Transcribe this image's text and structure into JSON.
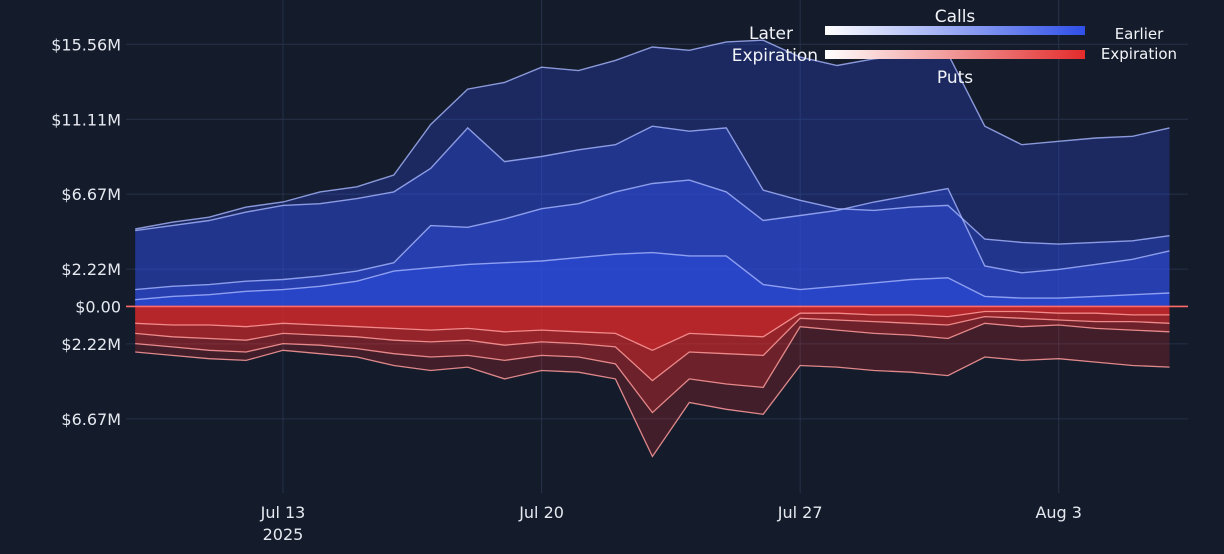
{
  "colors": {
    "background": "#141b2b",
    "grid": "#26324a",
    "calls_dark": "#2f4fe8",
    "calls_light": "#ffffff",
    "puts_dark": "#e32b2b",
    "puts_light": "#ffffff",
    "zero_line": "#ff6a6a"
  },
  "legend": {
    "calls_title": "Calls",
    "puts_title": "Puts",
    "later_line1": "Later",
    "later_line2": "Expiration",
    "earlier_line1": "Earlier",
    "earlier_line2": "Expiration",
    "placement": "top-right"
  },
  "chart_data": {
    "type": "area",
    "title": "",
    "xlabel": "",
    "ylabel": "",
    "x_tick_labels": [
      {
        "date": "2025-07-13",
        "label": "Jul 13",
        "sublabel": "2025"
      },
      {
        "date": "2025-07-20",
        "label": "Jul 20",
        "sublabel": ""
      },
      {
        "date": "2025-07-27",
        "label": "Jul 27",
        "sublabel": ""
      },
      {
        "date": "2025-08-03",
        "label": "Aug 3",
        "sublabel": ""
      }
    ],
    "y_tick_labels": [
      {
        "value": 15.56,
        "label": "$15.56M"
      },
      {
        "value": 11.11,
        "label": "$11.11M"
      },
      {
        "value": 6.67,
        "label": "$6.67M"
      },
      {
        "value": 2.22,
        "label": "$2.22M"
      },
      {
        "value": 0,
        "label": "$0.00"
      },
      {
        "value": -2.22,
        "label": "$2.22M"
      },
      {
        "value": -6.67,
        "label": "$6.67M"
      }
    ],
    "xlim": [
      "2025-07-08T18:00",
      "2025-08-06T12:00"
    ],
    "ylim": [
      -10.0,
      17.0
    ],
    "grid": true,
    "x": [
      "2025-07-09",
      "2025-07-10",
      "2025-07-11",
      "2025-07-12",
      "2025-07-13",
      "2025-07-14",
      "2025-07-15",
      "2025-07-16",
      "2025-07-17",
      "2025-07-18",
      "2025-07-19",
      "2025-07-20",
      "2025-07-21",
      "2025-07-22",
      "2025-07-23",
      "2025-07-24",
      "2025-07-25",
      "2025-07-26",
      "2025-07-27",
      "2025-07-28",
      "2025-07-29",
      "2025-07-30",
      "2025-07-31",
      "2025-08-01",
      "2025-08-02",
      "2025-08-03",
      "2025-08-04",
      "2025-08-05",
      "2025-08-06"
    ],
    "calls_series": [
      {
        "values": [
          4.6,
          5.0,
          5.3,
          5.9,
          6.2,
          6.8,
          7.1,
          7.8,
          10.8,
          12.9,
          13.3,
          14.2,
          14.0,
          14.6,
          15.4,
          15.2,
          15.7,
          15.8,
          14.8,
          14.3,
          14.7,
          14.9,
          15.0,
          10.7,
          9.6,
          9.8,
          10.0,
          10.1,
          10.6
        ]
      },
      {
        "values": [
          4.5,
          4.8,
          5.1,
          5.6,
          6.0,
          6.1,
          6.4,
          6.8,
          8.2,
          10.6,
          8.6,
          8.9,
          9.3,
          9.6,
          10.7,
          10.4,
          10.6,
          6.9,
          6.3,
          5.8,
          5.7,
          5.9,
          6.0,
          4.0,
          3.8,
          3.7,
          3.8,
          3.9,
          4.2
        ]
      },
      {
        "values": [
          1.0,
          1.2,
          1.3,
          1.5,
          1.6,
          1.8,
          2.1,
          2.6,
          4.8,
          4.7,
          5.2,
          5.8,
          6.1,
          6.8,
          7.3,
          7.5,
          6.8,
          5.1,
          5.4,
          5.7,
          6.2,
          6.6,
          7.0,
          2.4,
          2.0,
          2.2,
          2.5,
          2.8,
          3.3
        ]
      },
      {
        "values": [
          0.4,
          0.6,
          0.7,
          0.9,
          1.0,
          1.2,
          1.5,
          2.1,
          2.3,
          2.5,
          2.6,
          2.7,
          2.9,
          3.1,
          3.2,
          3.0,
          3.0,
          1.3,
          1.0,
          1.2,
          1.4,
          1.6,
          1.7,
          0.6,
          0.5,
          0.5,
          0.6,
          0.7,
          0.8
        ]
      }
    ],
    "puts_series": [
      {
        "values": [
          -2.7,
          -2.9,
          -3.1,
          -3.2,
          -2.6,
          -2.8,
          -3.0,
          -3.5,
          -3.8,
          -3.6,
          -4.3,
          -3.8,
          -3.9,
          -4.3,
          -8.9,
          -5.7,
          -6.1,
          -6.4,
          -3.5,
          -3.6,
          -3.8,
          -3.9,
          -4.1,
          -3.0,
          -3.2,
          -3.1,
          -3.3,
          -3.5,
          -3.6
        ]
      },
      {
        "values": [
          -2.2,
          -2.4,
          -2.6,
          -2.7,
          -2.2,
          -2.3,
          -2.5,
          -2.8,
          -3.0,
          -2.9,
          -3.2,
          -2.9,
          -3.0,
          -3.4,
          -6.3,
          -4.3,
          -4.6,
          -4.8,
          -1.2,
          -1.4,
          -1.6,
          -1.7,
          -1.9,
          -1.0,
          -1.2,
          -1.1,
          -1.3,
          -1.4,
          -1.5
        ]
      },
      {
        "values": [
          -1.6,
          -1.8,
          -1.9,
          -2.0,
          -1.6,
          -1.7,
          -1.8,
          -2.0,
          -2.1,
          -2.0,
          -2.3,
          -2.1,
          -2.2,
          -2.4,
          -4.4,
          -2.7,
          -2.8,
          -2.9,
          -0.7,
          -0.8,
          -0.9,
          -1.0,
          -1.1,
          -0.6,
          -0.7,
          -0.8,
          -0.9,
          -0.9,
          -1.0
        ]
      },
      {
        "values": [
          -1.0,
          -1.1,
          -1.1,
          -1.2,
          -1.0,
          -1.1,
          -1.2,
          -1.3,
          -1.4,
          -1.3,
          -1.5,
          -1.4,
          -1.5,
          -1.6,
          -2.6,
          -1.6,
          -1.7,
          -1.8,
          -0.4,
          -0.4,
          -0.5,
          -0.5,
          -0.6,
          -0.3,
          -0.3,
          -0.4,
          -0.4,
          -0.5,
          -0.5
        ]
      }
    ]
  }
}
